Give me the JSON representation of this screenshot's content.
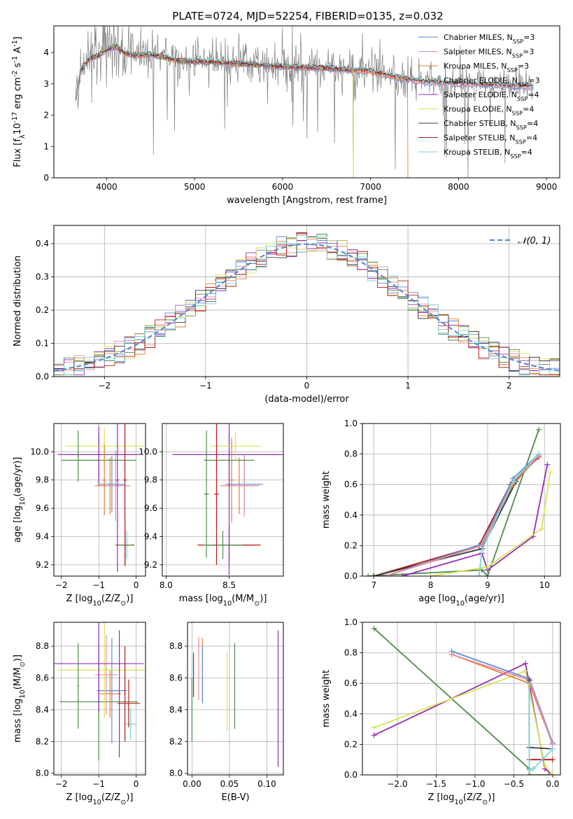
{
  "title": "PLATE=0724, MJD=52254, FIBERID=0135, z=0.032",
  "colors": [
    "#5b8bd6",
    "#e88ea3",
    "#e57d36",
    "#4f8a4a",
    "#9a2ab8",
    "#d8e356",
    "#3a3a3a",
    "#b81b12",
    "#77d6dd"
  ],
  "chart_data": [
    {
      "id": "spectrum",
      "type": "line",
      "xlabel": "wavelength [Angstrom, rest frame]",
      "ylabel": "Flux [f$_λ$10$^{-17}$ erg cm$^{-2}$ s$^{-1}$ A$^{-1}$]",
      "xlim": [
        3400,
        9150
      ],
      "ylim": [
        0,
        4.85
      ],
      "xticks": [
        4000,
        5000,
        6000,
        7000,
        8000,
        9000
      ],
      "yticks": [
        0,
        1,
        2,
        3,
        4
      ],
      "grid": false,
      "legend_position": "top-right",
      "data_color": "#808080",
      "model_x": [
        3650,
        3700,
        3800,
        3900,
        4000,
        4100,
        4200,
        4300,
        4500,
        4800,
        5000,
        5200,
        5500,
        6000,
        6500,
        7000,
        7400,
        7500,
        8000,
        8500,
        8850
      ],
      "model_y": [
        2.5,
        3.4,
        3.8,
        3.9,
        4.1,
        4.2,
        4.0,
        3.9,
        3.95,
        3.75,
        3.7,
        3.7,
        3.65,
        3.55,
        3.5,
        3.4,
        3.15,
        3.1,
        3.0,
        2.95,
        2.9
      ],
      "series": [
        {
          "name": "Chabrier MILES, N",
          "sub": "SSP",
          "suffix": "=3",
          "end": 8850
        },
        {
          "name": "Salpeter MILES, N",
          "sub": "SSP",
          "suffix": "=3",
          "end": 8850
        },
        {
          "name": "Kroupa MILES, N",
          "sub": "SSP",
          "suffix": "=3",
          "end": 7420
        },
        {
          "name": "Chabrier ELODIE, N",
          "sub": "SSP",
          "suffix": "=3",
          "end": 6800
        },
        {
          "name": "Salpeter ELODIE, N",
          "sub": "SSP",
          "suffix": "=4",
          "end": 6800
        },
        {
          "name": "Kroupa ELODIE, N",
          "sub": "SSP",
          "suffix": "=4",
          "end": 6800
        },
        {
          "name": "Chabrier STELIB, N",
          "sub": "SSP",
          "suffix": "=4",
          "end": 8850
        },
        {
          "name": "Salpeter STELIB, N",
          "sub": "SSP",
          "suffix": "=4",
          "end": 8850
        },
        {
          "name": "Kroupa STELIB, N",
          "sub": "SSP",
          "suffix": "=4",
          "end": 8850
        }
      ]
    },
    {
      "id": "residuals",
      "type": "histogram",
      "xlabel": "(data-model)/error",
      "ylabel": "Normed distribution",
      "xlim": [
        -2.5,
        2.5
      ],
      "ylim": [
        0,
        0.455
      ],
      "xticks": [
        -2,
        -1,
        0,
        1,
        2
      ],
      "yticks": [
        0.0,
        0.1,
        0.2,
        0.3,
        0.4
      ],
      "grid": true,
      "legend_position": "top-right",
      "gaussian_label": "𝒩(0, 1)",
      "gaussian_color": "#5b8bd6",
      "bin_width": 0.1
    },
    {
      "id": "age-vs-Z",
      "type": "errorbar",
      "xlabel": "Z [log$_{10}$(Z/Z$_⊙$)]",
      "ylabel": "age  [log$_{10}$(age/yr)]",
      "xlim": [
        -2.2,
        0.25
      ],
      "ylim": [
        9.12,
        10.2
      ],
      "xticks": [
        -2,
        -1,
        0
      ],
      "yticks": [
        9.2,
        9.4,
        9.6,
        9.8,
        10.0
      ],
      "grid": true,
      "crosses": [
        {
          "c": 8,
          "x": -0.25,
          "xe": 0.15,
          "y": 9.34,
          "ye": 0.1
        },
        {
          "c": 7,
          "x": -0.3,
          "xe": 0.25,
          "y": 9.34,
          "ye": 0.15
        },
        {
          "c": 3,
          "x": -0.3,
          "xe": 0.2,
          "y": 9.34,
          "ye": 0.1
        },
        {
          "c": 2,
          "x": -0.7,
          "xe": 0.4,
          "y": 9.76,
          "ye": 0.2
        },
        {
          "c": 0,
          "x": -0.65,
          "xe": 0.35,
          "y": 9.77,
          "ye": 0.2
        },
        {
          "c": 1,
          "x": -0.55,
          "xe": 0.4,
          "y": 9.76,
          "ye": 0.25
        },
        {
          "c": 3,
          "x": -1.0,
          "xe": 1.0,
          "y": 9.94,
          "ye": 0.18
        },
        {
          "c": 4,
          "x": -1.0,
          "xe": 1.1,
          "y": 9.98,
          "ye": 0.2
        },
        {
          "c": 5,
          "x": -0.85,
          "xe": 1.05,
          "y": 10.04,
          "ye": 0.13
        },
        {
          "c": 2,
          "x": -0.85,
          "xe": 0.05,
          "y": 9.8,
          "ye": 0.25
        },
        {
          "c": 7,
          "x": -0.3,
          "xe": 0.05,
          "y": 9.8,
          "ye": 0.6
        },
        {
          "c": 4,
          "x": -0.5,
          "xe": 0.05,
          "y": 9.8,
          "ye": 0.65
        },
        {
          "c": 3,
          "x": -1.55,
          "xe": 0.02,
          "y": 9.97,
          "ye": 0.18
        }
      ]
    },
    {
      "id": "age-vs-mass",
      "type": "errorbar",
      "xlabel": "mass [log$_{10}$(M/M$_⊙$)]",
      "xlim": [
        7.97,
        8.93
      ],
      "ylim": [
        9.12,
        10.2
      ],
      "xticks": [
        8.0,
        8.5
      ],
      "yticks": [
        9.2,
        9.4,
        9.6,
        9.8,
        10.0
      ],
      "grid": true,
      "crosses": [
        {
          "c": 8,
          "x": 8.5,
          "xe": 0.2,
          "y": 9.34,
          "ye": 0.1
        },
        {
          "c": 7,
          "x": 8.5,
          "xe": 0.25,
          "y": 9.34,
          "ye": 0.13
        },
        {
          "c": 3,
          "x": 8.45,
          "xe": 0.15,
          "y": 9.34,
          "ye": 0.1
        },
        {
          "c": 2,
          "x": 8.58,
          "xe": 0.15,
          "y": 9.76,
          "ye": 0.2
        },
        {
          "c": 0,
          "x": 8.62,
          "xe": 0.15,
          "y": 9.77,
          "ye": 0.2
        },
        {
          "c": 1,
          "x": 8.62,
          "xe": 0.12,
          "y": 9.76,
          "ye": 0.22
        },
        {
          "c": 3,
          "x": 8.5,
          "xe": 0.2,
          "y": 9.94,
          "ye": 0.2
        },
        {
          "c": 4,
          "x": 8.5,
          "xe": 0.45,
          "y": 9.98,
          "ye": 0.85
        },
        {
          "c": 5,
          "x": 8.55,
          "xe": 0.2,
          "y": 10.04,
          "ye": 0.1
        },
        {
          "c": 7,
          "x": 8.4,
          "xe": 0.02,
          "y": 9.7,
          "ye": 0.5
        },
        {
          "c": 3,
          "x": 8.32,
          "xe": 0.02,
          "y": 9.7,
          "ye": 0.45
        },
        {
          "c": 2,
          "x": 8.52,
          "xe": 0.02,
          "y": 9.8,
          "ye": 0.3
        }
      ]
    },
    {
      "id": "massweight-vs-age",
      "type": "line",
      "xlabel": "age  [log$_{10}$(age/yr)]",
      "ylabel": "mass weight",
      "xlim": [
        6.8,
        10.28
      ],
      "ylim": [
        0,
        1.0
      ],
      "xticks": [
        7,
        8,
        9,
        10
      ],
      "yticks": [
        0.0,
        0.2,
        0.4,
        0.6,
        0.8,
        1.0
      ],
      "grid": true,
      "lines": [
        {
          "c": 3,
          "x": [
            6.9,
            8.9,
            9.0,
            9.9
          ],
          "y": [
            0.0,
            0.04,
            0.0,
            0.96
          ]
        },
        {
          "c": 4,
          "x": [
            7.5,
            8.9,
            9.0,
            9.8,
            10.05
          ],
          "y": [
            0.0,
            0.15,
            0.04,
            0.26,
            0.73
          ]
        },
        {
          "c": 5,
          "x": [
            8.0,
            9.0,
            9.95,
            10.1
          ],
          "y": [
            0.0,
            0.06,
            0.31,
            0.68
          ]
        },
        {
          "c": 7,
          "x": [
            7.0,
            8.85,
            9.4,
            9.9
          ],
          "y": [
            0.0,
            0.2,
            0.6,
            0.78
          ]
        },
        {
          "c": 6,
          "x": [
            7.0,
            8.9,
            9.5,
            9.9
          ],
          "y": [
            0.0,
            0.18,
            0.62,
            0.8
          ]
        },
        {
          "c": 2,
          "x": [
            7.2,
            8.9,
            9.45,
            9.9
          ],
          "y": [
            0.0,
            0.2,
            0.6,
            0.79
          ]
        },
        {
          "c": 0,
          "x": [
            7.2,
            8.9,
            9.45,
            9.9
          ],
          "y": [
            0.0,
            0.21,
            0.64,
            0.8
          ]
        },
        {
          "c": 1,
          "x": [
            7.2,
            8.9,
            9.45,
            9.9
          ],
          "y": [
            0.0,
            0.2,
            0.62,
            0.79
          ]
        },
        {
          "c": 8,
          "x": [
            8.85,
            8.9,
            9.45,
            9.9
          ],
          "y": [
            0.0,
            0.17,
            0.62,
            0.8
          ]
        }
      ]
    },
    {
      "id": "mass-vs-Z",
      "type": "errorbar",
      "xlabel": "Z [log$_{10}$(Z/Z$_⊙$)]",
      "ylabel": "mass [log$_{10}$(M/M$_⊙$)]",
      "xlim": [
        -2.2,
        0.25
      ],
      "ylim": [
        7.99,
        8.95
      ],
      "xticks": [
        -2,
        -1,
        0
      ],
      "yticks": [
        8.0,
        8.2,
        8.4,
        8.6,
        8.8
      ],
      "grid": true,
      "crosses": [
        {
          "c": 8,
          "x": -0.15,
          "xe": 0.15,
          "y": 8.31,
          "ye": 0.1
        },
        {
          "c": 7,
          "x": -0.2,
          "xe": 0.3,
          "y": 8.44,
          "ye": 0.15
        },
        {
          "c": 3,
          "x": -1.0,
          "xe": 1.05,
          "y": 8.45,
          "ye": 0.37
        },
        {
          "c": 2,
          "x": -0.7,
          "xe": 0.3,
          "y": 8.5,
          "ye": 0.15
        },
        {
          "c": 0,
          "x": -0.65,
          "xe": 0.4,
          "y": 8.52,
          "ye": 0.33
        },
        {
          "c": 1,
          "x": -0.8,
          "xe": 0.3,
          "y": 8.62,
          "ye": 0.25
        },
        {
          "c": 5,
          "x": -0.85,
          "xe": 1.25,
          "y": 8.65,
          "ye": 0.3
        },
        {
          "c": 4,
          "x": -1.0,
          "xe": 1.2,
          "y": 8.69,
          "ye": 0.3
        },
        {
          "c": 4,
          "x": -0.45,
          "xe": 0.02,
          "y": 8.5,
          "ye": 0.4
        },
        {
          "c": 3,
          "x": -1.55,
          "xe": 0.02,
          "y": 8.55,
          "ye": 0.27
        },
        {
          "c": 7,
          "x": -0.3,
          "xe": 0.02,
          "y": 8.5,
          "ye": 0.3
        }
      ]
    },
    {
      "id": "mass-vs-EBV",
      "type": "errorbar",
      "xlabel": "E(B-V)",
      "xlim": [
        -0.006,
        0.122
      ],
      "ylim": [
        7.99,
        8.95
      ],
      "xticks": [
        0.0,
        0.05,
        0.1
      ],
      "yticks": [
        8.0,
        8.2,
        8.4,
        8.6,
        8.8
      ],
      "grid": true,
      "crosses": [
        {
          "c": 8,
          "x": 0.0,
          "xe": 0.0,
          "y": 8.45,
          "ye": 0.25
        },
        {
          "c": 7,
          "x": 0.002,
          "xe": 0.0,
          "y": 8.62,
          "ye": 0.14
        },
        {
          "c": 3,
          "x": 0.0,
          "xe": 0.0,
          "y": 8.4,
          "ye": 0.2
        },
        {
          "c": 1,
          "x": 0.009,
          "xe": 0.0,
          "y": 8.66,
          "ye": 0.2
        },
        {
          "c": 2,
          "x": 0.014,
          "xe": 0.0,
          "y": 8.65,
          "ye": 0.2
        },
        {
          "c": 0,
          "x": 0.014,
          "xe": 0.0,
          "y": 8.62,
          "ye": 0.18
        },
        {
          "c": 5,
          "x": 0.047,
          "xe": 0.0,
          "y": 8.52,
          "ye": 0.25
        },
        {
          "c": 3,
          "x": 0.057,
          "xe": 0.0,
          "y": 8.55,
          "ye": 0.27
        },
        {
          "c": 4,
          "x": 0.115,
          "xe": 0.0,
          "y": 8.47,
          "ye": 0.43
        }
      ]
    },
    {
      "id": "massweight-vs-Z",
      "type": "line",
      "xlabel": "Z [log$_{10}$(Z/Z$_⊙$)]",
      "ylabel": "mass weight",
      "xlim": [
        -2.45,
        0.1
      ],
      "ylim": [
        0,
        1.0
      ],
      "xticks": [
        -2.0,
        -1.5,
        -1.0,
        -0.5,
        0.0
      ],
      "yticks": [
        0.0,
        0.2,
        0.4,
        0.6,
        0.8,
        1.0
      ],
      "grid": true,
      "lines": [
        {
          "c": 3,
          "x": [
            -2.3,
            -0.3,
            -0.3,
            -0.05,
            0.0
          ],
          "y": [
            0.96,
            0.04,
            0.0,
            0.0,
            0.0
          ]
        },
        {
          "c": 4,
          "x": [
            -2.3,
            -0.35,
            -0.1,
            0.0
          ],
          "y": [
            0.26,
            0.73,
            0.04,
            0.0
          ]
        },
        {
          "c": 5,
          "x": [
            -2.3,
            -0.35,
            -0.1,
            0.0
          ],
          "y": [
            0.31,
            0.68,
            0.06,
            0.0
          ]
        },
        {
          "c": 7,
          "x": [
            -0.3,
            0.0
          ],
          "y": [
            0.1,
            0.1
          ]
        },
        {
          "c": 2,
          "x": [
            -1.3,
            -0.3,
            0.0
          ],
          "y": [
            0.79,
            0.6,
            0.2
          ]
        },
        {
          "c": 0,
          "x": [
            -1.3,
            -0.3,
            0.0
          ],
          "y": [
            0.81,
            0.63,
            0.21
          ]
        },
        {
          "c": 1,
          "x": [
            -1.3,
            -0.3,
            0.0
          ],
          "y": [
            0.79,
            0.62,
            0.2
          ]
        },
        {
          "c": 6,
          "x": [
            -0.3,
            -0.3,
            0.0
          ],
          "y": [
            0.62,
            0.18,
            0.17
          ]
        },
        {
          "c": 8,
          "x": [
            -0.3,
            -0.3,
            -0.25,
            0.0
          ],
          "y": [
            0.6,
            0.03,
            0.04,
            0.17
          ]
        }
      ]
    }
  ]
}
